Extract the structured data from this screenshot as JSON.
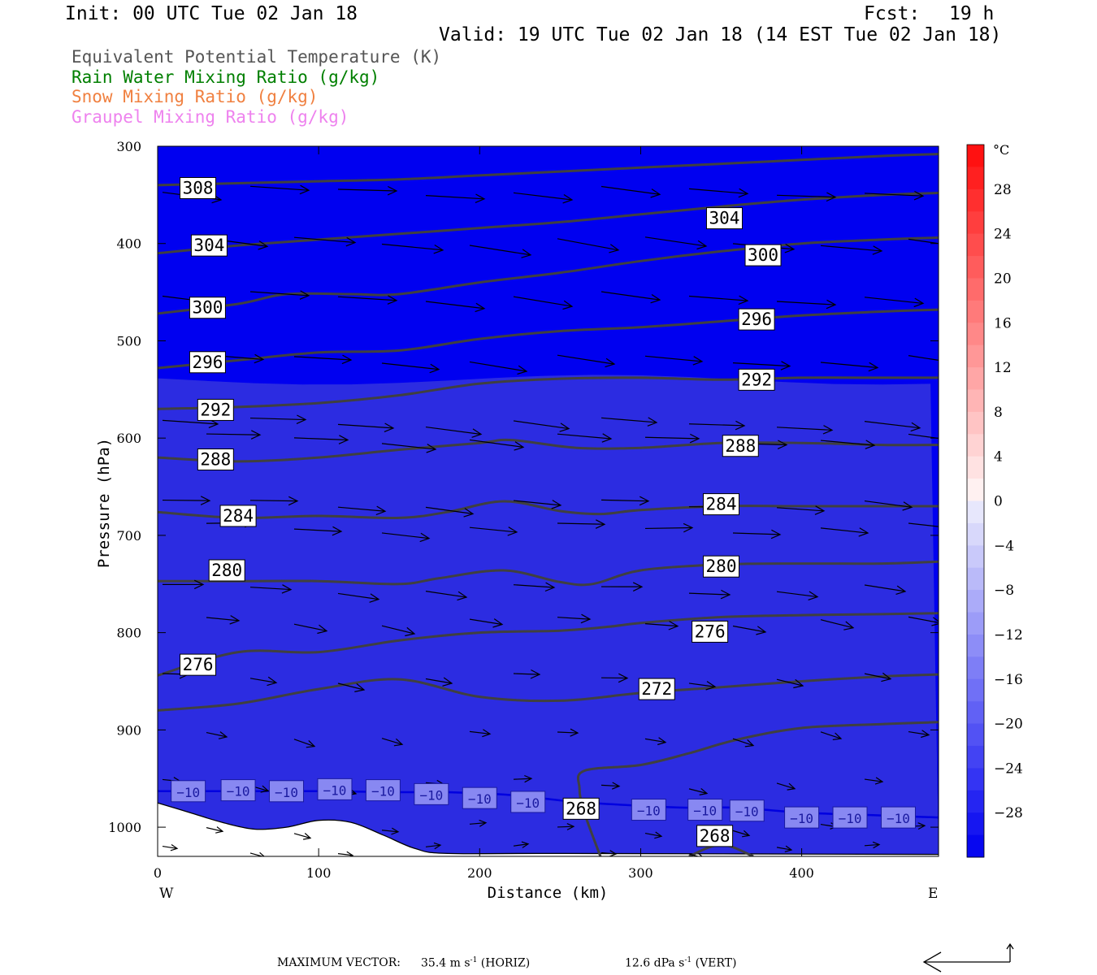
{
  "header": {
    "init": "Init: 00 UTC Tue 02 Jan 18",
    "fcst_label": "Fcst:",
    "fcst_value": "19 h",
    "valid": "Valid: 19 UTC Tue 02 Jan 18 (14 EST Tue 02 Jan 18)"
  },
  "legend": [
    {
      "text": "Equivalent Potential Temperature (K)",
      "color": "#555555"
    },
    {
      "text": "Rain Water Mixing Ratio (g/kg)",
      "color": "#007f00"
    },
    {
      "text": "Snow Mixing Ratio (g/kg)",
      "color": "#f08040"
    },
    {
      "text": "Graupel Mixing Ratio (g/kg)",
      "color": "#ee82ee"
    }
  ],
  "footer": {
    "label": "MAXIMUM VECTOR:",
    "horiz_value": "35.4 m s",
    "horiz_exp": "-1",
    "horiz_tag": "(HORIZ)",
    "vert_value": "12.6 dPa s",
    "vert_exp": "-1",
    "vert_tag": "(VERT)"
  },
  "chart_data": {
    "type": "cross-section",
    "xlabel": "Distance (km)",
    "ylabel": "Pressure (hPa)",
    "xlim": [
      0,
      485
    ],
    "ylim": [
      1030,
      300
    ],
    "x_ticks": [
      0,
      100,
      200,
      300,
      400
    ],
    "y_ticks": [
      300,
      400,
      500,
      600,
      700,
      800,
      900,
      1000
    ],
    "x_endpoints": {
      "left": "W",
      "right": "E"
    },
    "colorbar": {
      "unit": "°C",
      "min": -32,
      "max": 32,
      "tick_values": [
        28,
        24,
        20,
        16,
        12,
        8,
        4,
        0,
        -4,
        -8,
        -12,
        -16,
        -20,
        -24,
        -28
      ],
      "tick_labels": [
        "28",
        "24",
        "20",
        "16",
        "12",
        "8",
        "4",
        "0",
        "−4",
        "−8",
        "−12",
        "−16",
        "−20",
        "−24",
        "−28"
      ]
    },
    "theta_e_contours": [
      {
        "level": 308,
        "label": "308",
        "points": [
          [
            0,
            340
          ],
          [
            50,
            338
          ],
          [
            100,
            336
          ],
          [
            150,
            334
          ],
          [
            200,
            330
          ],
          [
            250,
            326
          ],
          [
            300,
            322
          ],
          [
            350,
            318
          ],
          [
            400,
            314
          ],
          [
            450,
            310
          ],
          [
            485,
            308
          ]
        ]
      },
      {
        "level": 304,
        "label": "304",
        "points": [
          [
            0,
            410
          ],
          [
            50,
            402
          ],
          [
            100,
            396
          ],
          [
            150,
            390
          ],
          [
            200,
            384
          ],
          [
            250,
            378
          ],
          [
            300,
            370
          ],
          [
            350,
            362
          ],
          [
            400,
            355
          ],
          [
            450,
            350
          ],
          [
            485,
            348
          ]
        ]
      },
      {
        "level": 300,
        "label": "300",
        "points": [
          [
            0,
            472
          ],
          [
            50,
            462
          ],
          [
            80,
            452
          ],
          [
            120,
            452
          ],
          [
            150,
            452
          ],
          [
            200,
            440
          ],
          [
            250,
            430
          ],
          [
            300,
            418
          ],
          [
            350,
            408
          ],
          [
            400,
            400
          ],
          [
            450,
            396
          ],
          [
            485,
            394
          ]
        ]
      },
      {
        "level": 296,
        "label": "296",
        "points": [
          [
            0,
            528
          ],
          [
            50,
            520
          ],
          [
            100,
            512
          ],
          [
            150,
            510
          ],
          [
            200,
            498
          ],
          [
            250,
            490
          ],
          [
            300,
            486
          ],
          [
            350,
            480
          ],
          [
            400,
            474
          ],
          [
            450,
            470
          ],
          [
            485,
            468
          ]
        ]
      },
      {
        "level": 292,
        "label": "292",
        "points": [
          [
            0,
            570
          ],
          [
            50,
            568
          ],
          [
            100,
            564
          ],
          [
            150,
            556
          ],
          [
            200,
            544
          ],
          [
            250,
            539
          ],
          [
            300,
            538
          ],
          [
            350,
            540
          ],
          [
            400,
            538
          ],
          [
            450,
            538
          ],
          [
            485,
            538
          ]
        ]
      },
      {
        "level": 288,
        "label": "288",
        "points": [
          [
            0,
            620
          ],
          [
            50,
            624
          ],
          [
            100,
            620
          ],
          [
            150,
            612
          ],
          [
            200,
            605
          ],
          [
            220,
            602
          ],
          [
            260,
            610
          ],
          [
            300,
            610
          ],
          [
            350,
            605
          ],
          [
            400,
            605
          ],
          [
            450,
            607
          ],
          [
            485,
            607
          ]
        ]
      },
      {
        "level": 284,
        "label": "284",
        "points": [
          [
            0,
            676
          ],
          [
            50,
            682
          ],
          [
            100,
            680
          ],
          [
            150,
            682
          ],
          [
            180,
            676
          ],
          [
            215,
            665
          ],
          [
            250,
            675
          ],
          [
            275,
            678
          ],
          [
            300,
            674
          ],
          [
            350,
            670
          ],
          [
            400,
            670
          ],
          [
            450,
            670
          ],
          [
            485,
            670
          ]
        ]
      },
      {
        "level": 280,
        "label": "280",
        "points": [
          [
            0,
            747
          ],
          [
            50,
            747
          ],
          [
            100,
            747
          ],
          [
            150,
            750
          ],
          [
            175,
            744
          ],
          [
            215,
            736
          ],
          [
            250,
            748
          ],
          [
            270,
            750
          ],
          [
            300,
            736
          ],
          [
            350,
            730
          ],
          [
            400,
            729
          ],
          [
            450,
            729
          ],
          [
            485,
            727
          ]
        ]
      },
      {
        "level": 276,
        "label": "276",
        "points": [
          [
            0,
            844
          ],
          [
            50,
            820
          ],
          [
            100,
            820
          ],
          [
            150,
            808
          ],
          [
            200,
            800
          ],
          [
            250,
            798
          ],
          [
            280,
            794
          ],
          [
            300,
            790
          ],
          [
            350,
            784
          ],
          [
            400,
            782
          ],
          [
            450,
            781
          ],
          [
            485,
            780
          ]
        ]
      },
      {
        "level": 272,
        "label": "272",
        "points": [
          [
            0,
            880
          ],
          [
            50,
            873
          ],
          [
            100,
            858
          ],
          [
            150,
            848
          ],
          [
            200,
            866
          ],
          [
            250,
            870
          ],
          [
            300,
            862
          ],
          [
            350,
            856
          ],
          [
            400,
            850
          ],
          [
            450,
            845
          ],
          [
            485,
            843
          ]
        ]
      },
      {
        "level": 268,
        "label": "268",
        "points": [
          [
            275,
            1030
          ],
          [
            265,
            985
          ],
          [
            262,
            960
          ],
          [
            265,
            942
          ],
          [
            300,
            936
          ],
          [
            330,
            924
          ],
          [
            360,
            910
          ],
          [
            400,
            898
          ],
          [
            450,
            894
          ],
          [
            485,
            892
          ]
        ]
      },
      {
        "level": 268,
        "label": "268",
        "points": [
          [
            330,
            1030
          ],
          [
            350,
            1018
          ],
          [
            370,
            1030
          ]
        ]
      }
    ],
    "isotherm": {
      "level": -10,
      "label": "−10",
      "points": [
        [
          0,
          963
        ],
        [
          50,
          963
        ],
        [
          100,
          963
        ],
        [
          150,
          964
        ],
        [
          180,
          964
        ],
        [
          220,
          967
        ],
        [
          260,
          974
        ],
        [
          300,
          978
        ],
        [
          330,
          980
        ],
        [
          360,
          980
        ],
        [
          400,
          985
        ],
        [
          450,
          988
        ],
        [
          485,
          990
        ]
      ]
    }
  }
}
